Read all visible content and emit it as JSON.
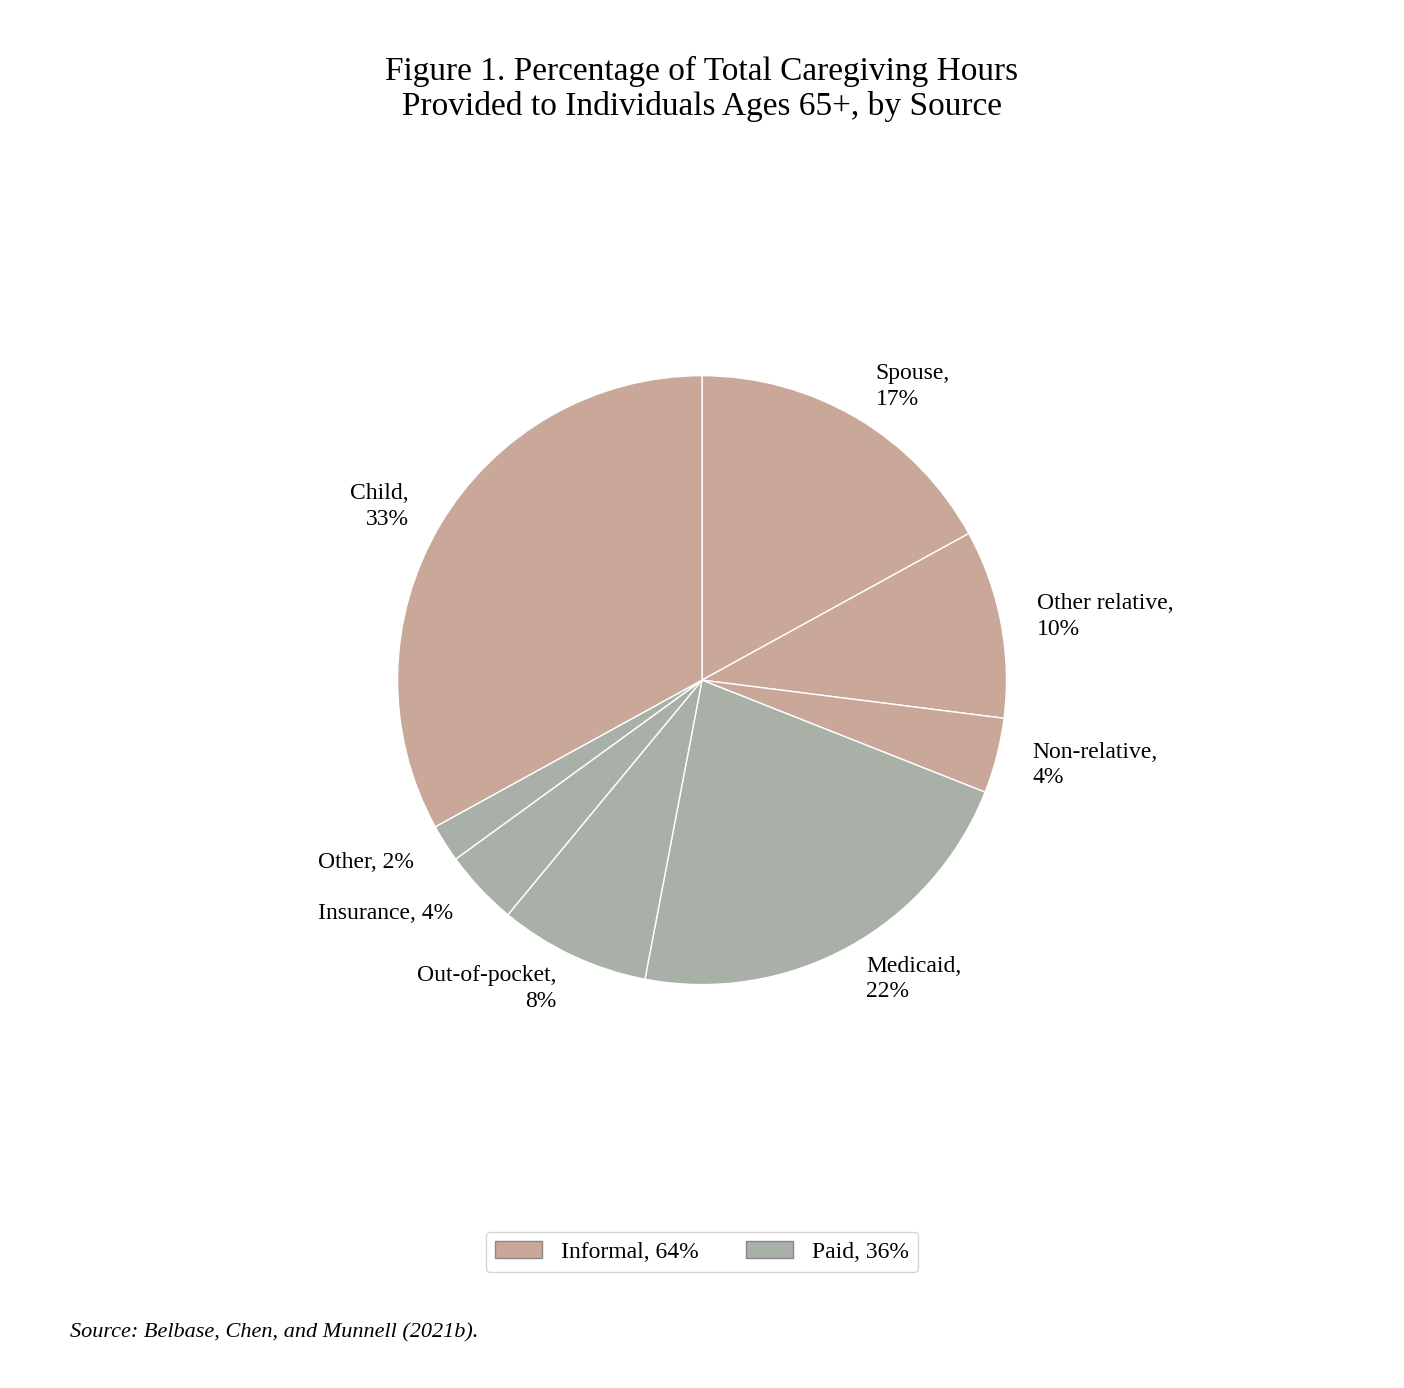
{
  "chart_data": {
    "type": "pie",
    "title": "Figure 1. Percentage of Total Caregiving Hours\nProvided to Individuals Ages 65+, by Source",
    "categories": [
      "Spouse,\n17%",
      "Other relative,\n10%",
      "Non-relative,\n4%",
      "Medicaid,\n22%",
      "Out-of-pocket,\n8%",
      "Insurance, 4%",
      "Other, 2%",
      "Child,\n33%"
    ],
    "values": [
      17,
      10,
      4,
      22,
      8,
      4,
      2,
      33
    ],
    "colors": [
      "#c9a89a",
      "#c9a89a",
      "#c9a89a",
      "#a8b0a8",
      "#a8b0a8",
      "#a8b0a8",
      "#a8b0a8",
      "#c9a89a"
    ],
    "series": [
      {
        "name": "Informal, 64%",
        "color": "#c9a89a"
      },
      {
        "name": "Paid, 36%",
        "color": "#a8b0a8"
      }
    ],
    "legend": "lower center",
    "annotations": [
      "Source: Belbase, Chen, and Munnell (2021b)."
    ]
  }
}
